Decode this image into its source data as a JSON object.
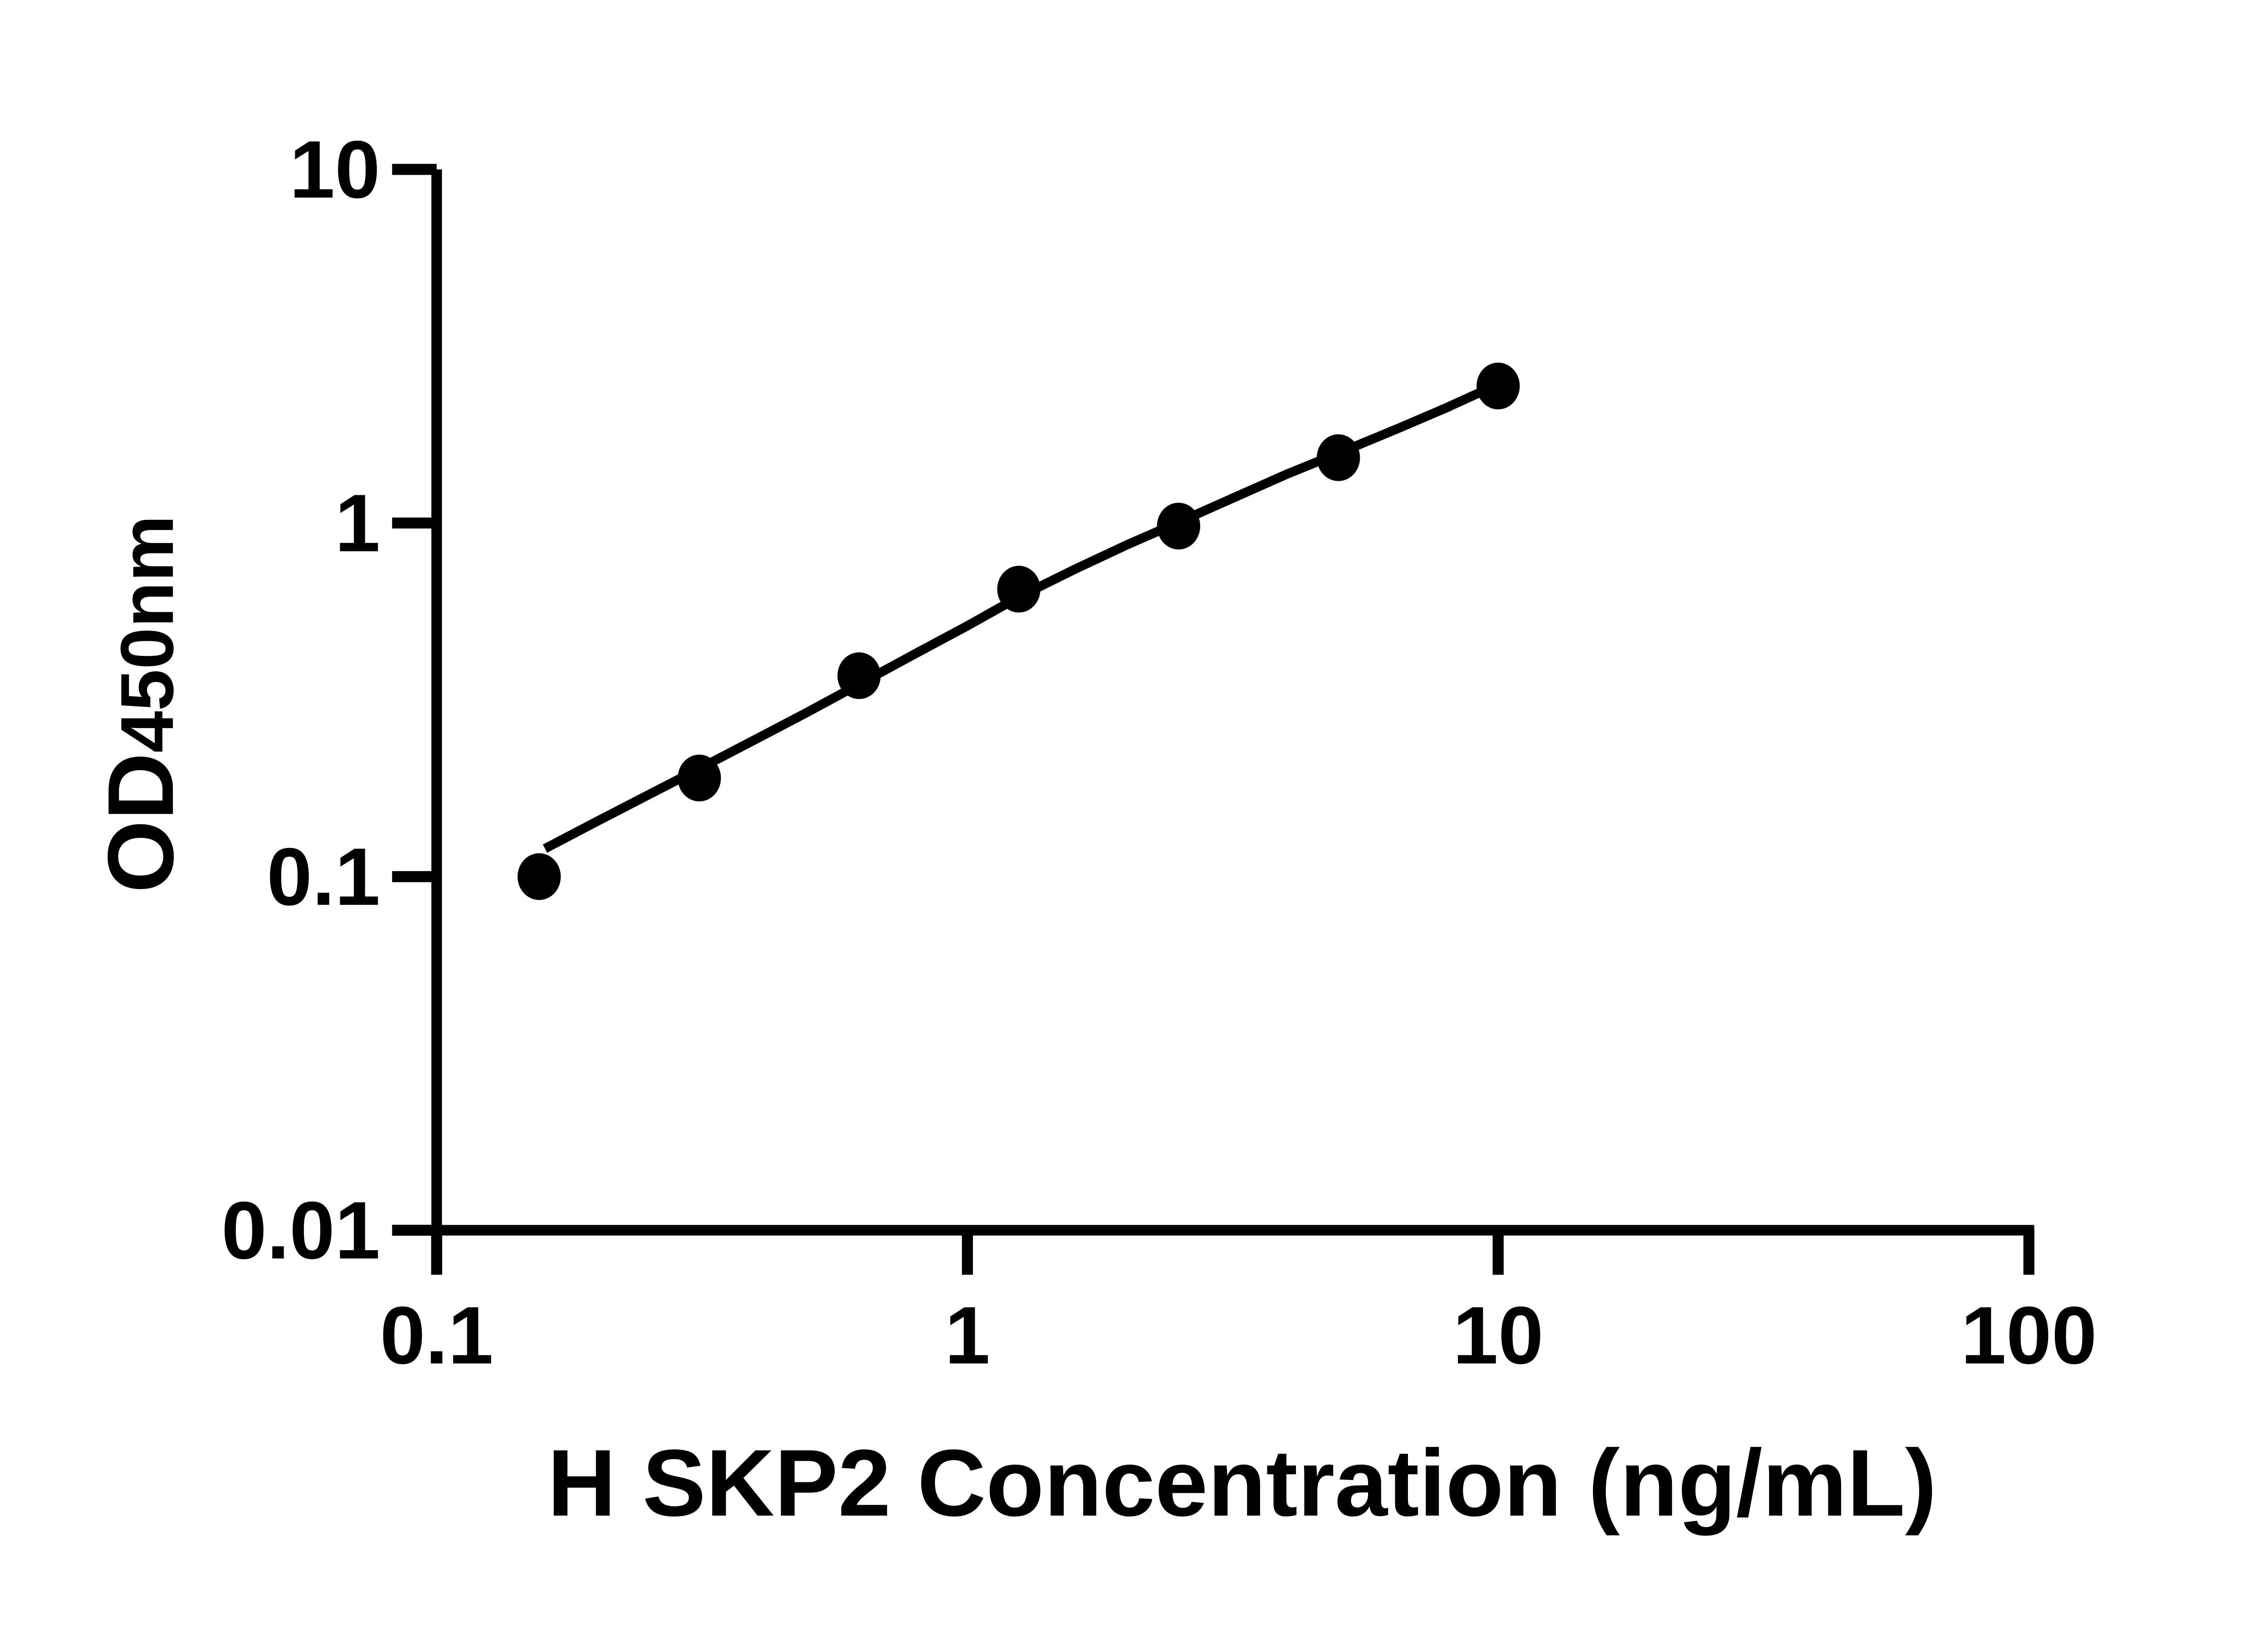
{
  "colors": {
    "ink": "#000000",
    "background": "#ffffff"
  },
  "chart_data": {
    "type": "scatter",
    "title": "",
    "xlabel": "H SKP2 Concentration (ng/mL)",
    "ylabel": "OD450nm",
    "ylabel_parts": {
      "main": "OD",
      "sub": "450nm"
    },
    "x_scale": "log10",
    "y_scale": "log10",
    "xlim": [
      0.1,
      100
    ],
    "ylim": [
      0.01,
      10
    ],
    "x_ticks": [
      "0.1",
      "1",
      "10",
      "100"
    ],
    "y_ticks": [
      "10",
      "1",
      "0.1",
      "0.01"
    ],
    "grid": false,
    "legend": "none",
    "marker": {
      "shape": "filled-circle",
      "color": "#000000"
    },
    "series": [
      {
        "name": "H SKP2 standard curve points",
        "x": [
          0.156,
          0.3125,
          0.625,
          1.25,
          2.5,
          5,
          10
        ],
        "y": [
          0.1,
          0.19,
          0.37,
          0.65,
          0.98,
          1.53,
          2.44
        ]
      }
    ],
    "fit_curve": {
      "x": [
        0.16,
        0.2,
        0.25,
        0.3125,
        0.4,
        0.5,
        0.625,
        0.8,
        1.0,
        1.25,
        1.6,
        2.0,
        2.5,
        3.2,
        4.0,
        5.0,
        6.5,
        8.0,
        10.0
      ],
      "y": [
        0.12,
        0.143,
        0.17,
        0.202,
        0.245,
        0.292,
        0.35,
        0.428,
        0.512,
        0.618,
        0.742,
        0.868,
        1.005,
        1.185,
        1.375,
        1.575,
        1.855,
        2.12,
        2.47
      ]
    }
  }
}
